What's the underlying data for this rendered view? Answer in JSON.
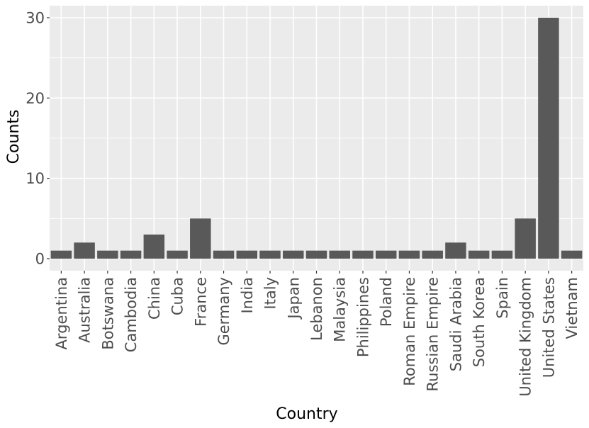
{
  "chart_data": {
    "type": "bar",
    "xlabel": "Country",
    "ylabel": "Counts",
    "categories": [
      "Argentina",
      "Australia",
      "Botswana",
      "Cambodia",
      "China",
      "Cuba",
      "France",
      "Germany",
      "India",
      "Italy",
      "Japan",
      "Lebanon",
      "Malaysia",
      "Philippines",
      "Poland",
      "Roman Empire",
      "Russian Empire",
      "Saudi Arabia",
      "South Korea",
      "Spain",
      "United Kingdom",
      "United States",
      "Vietnam"
    ],
    "values": [
      1,
      2,
      1,
      1,
      3,
      1,
      5,
      1,
      1,
      1,
      1,
      1,
      1,
      1,
      1,
      1,
      1,
      2,
      1,
      1,
      5,
      30,
      1
    ],
    "y_ticks": [
      0,
      10,
      20,
      30
    ],
    "ylim": [
      -1.5,
      31.5
    ],
    "grid": true,
    "bar_color": "#595959",
    "panel_color": "#ebebeb",
    "grid_color": "#ffffff"
  }
}
